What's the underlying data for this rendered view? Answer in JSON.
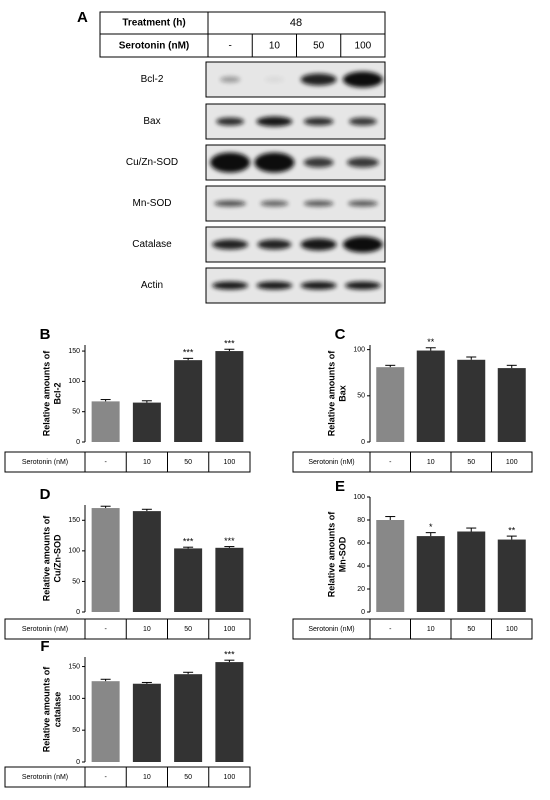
{
  "panel_a": {
    "label": "A",
    "treatment_label": "Treatment (h)",
    "treatment_value": "48",
    "serotonin_label": "Serotonin (nM)",
    "doses": [
      "-",
      "10",
      "50",
      "100"
    ],
    "blots": [
      "Bcl-2",
      "Bax",
      "Cu/Zn-SOD",
      "Mn-SOD",
      "Catalase",
      "Actin"
    ]
  },
  "chart_data": [
    {
      "type": "bar",
      "panel": "B",
      "ylabel": [
        "Relative amounts of",
        "Bcl-2"
      ],
      "table_label": "Serotonin (nM)",
      "categories": [
        "-",
        "10",
        "50",
        "100"
      ],
      "values": [
        67,
        65,
        135,
        150
      ],
      "errors": [
        3,
        3,
        3,
        3
      ],
      "annotations": [
        null,
        null,
        "***",
        "***"
      ],
      "colors": [
        "#888888",
        "#333333",
        "#333333",
        "#333333"
      ],
      "ylim": [
        0,
        160
      ],
      "yticks": [
        0,
        50,
        100,
        150
      ]
    },
    {
      "type": "bar",
      "panel": "C",
      "ylabel": [
        "Relative amounts of",
        "Bax"
      ],
      "table_label": "Serotonin (nM)",
      "categories": [
        "-",
        "10",
        "50",
        "100"
      ],
      "values": [
        81,
        99,
        89,
        80
      ],
      "errors": [
        2,
        3,
        3,
        3
      ],
      "annotations": [
        null,
        "**",
        null,
        null
      ],
      "colors": [
        "#888888",
        "#333333",
        "#333333",
        "#333333"
      ],
      "ylim": [
        0,
        105
      ],
      "yticks": [
        0,
        50,
        100
      ]
    },
    {
      "type": "bar",
      "panel": "D",
      "ylabel": [
        "Relative amounts of",
        "Cu/Zn-SOD"
      ],
      "table_label": "Serotonin (nM)",
      "categories": [
        "-",
        "10",
        "50",
        "100"
      ],
      "values": [
        170,
        165,
        104,
        105
      ],
      "errors": [
        3,
        3,
        2,
        2
      ],
      "annotations": [
        null,
        null,
        "***",
        "***"
      ],
      "colors": [
        "#888888",
        "#333333",
        "#333333",
        "#333333"
      ],
      "ylim": [
        0,
        175
      ],
      "yticks": [
        0,
        50,
        100,
        150
      ]
    },
    {
      "type": "bar",
      "panel": "E",
      "ylabel": [
        "Relative amounts of",
        "Mn-SOD"
      ],
      "table_label": "Serotonin (nM)",
      "categories": [
        "-",
        "10",
        "50",
        "100"
      ],
      "values": [
        80,
        66,
        70,
        63
      ],
      "errors": [
        3,
        3,
        3,
        3
      ],
      "annotations": [
        null,
        "*",
        null,
        "**"
      ],
      "colors": [
        "#888888",
        "#333333",
        "#333333",
        "#333333"
      ],
      "ylim": [
        0,
        100
      ],
      "yticks": [
        0,
        20,
        40,
        60,
        80,
        100
      ]
    },
    {
      "type": "bar",
      "panel": "F",
      "ylabel": [
        "Relative amounts of",
        "catalase"
      ],
      "table_label": "Serotonin (nM)",
      "categories": [
        "-",
        "10",
        "50",
        "100"
      ],
      "values": [
        127,
        123,
        138,
        157
      ],
      "errors": [
        3,
        2,
        3,
        3
      ],
      "annotations": [
        null,
        null,
        null,
        "***"
      ],
      "colors": [
        "#888888",
        "#333333",
        "#333333",
        "#333333"
      ],
      "ylim": [
        0,
        165
      ],
      "yticks": [
        0,
        50,
        100,
        150
      ]
    }
  ]
}
